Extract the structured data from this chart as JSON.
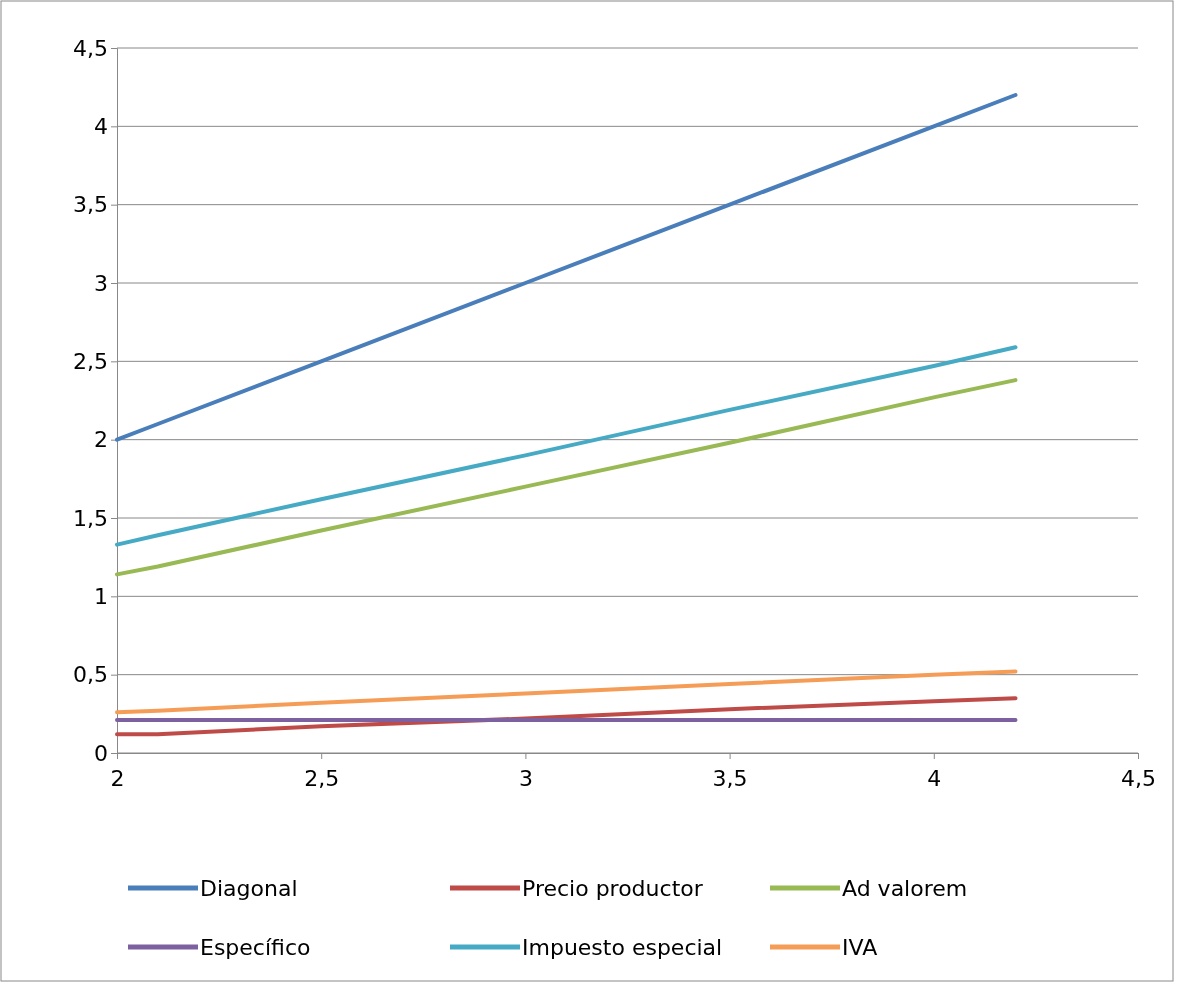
{
  "chart_data": {
    "type": "line",
    "xlim": [
      2,
      4.5
    ],
    "ylim": [
      0,
      4.5
    ],
    "xticks": [
      2,
      {
        "value": 2.5,
        "label": "2,5"
      },
      3,
      {
        "value": 3.5,
        "label": "3,5"
      },
      4,
      {
        "value": 4.5,
        "label": "4,5"
      }
    ],
    "yticks": [
      0,
      {
        "value": 0.5,
        "label": "0,5"
      },
      1,
      {
        "value": 1.5,
        "label": "1,5"
      },
      2,
      {
        "value": 2.5,
        "label": "2,5"
      },
      3,
      {
        "value": 3.5,
        "label": "3,5"
      },
      4,
      {
        "value": 4.5,
        "label": "4,5"
      }
    ],
    "grid": "y",
    "legend": "bottom",
    "marker": "none",
    "line_style": "solid",
    "x": [
      2,
      2.1,
      2.5,
      3,
      3.5,
      4,
      4.2
    ],
    "series": [
      {
        "name": "Diagonal",
        "color": "#4a7ebb",
        "values": [
          2,
          2.1,
          2.5,
          3,
          3.5,
          4,
          4.2
        ]
      },
      {
        "name": "Precio productor",
        "color": "#be4b48",
        "values": [
          0.12,
          0.12,
          0.17,
          0.22,
          0.28,
          0.33,
          0.35
        ]
      },
      {
        "name": "Ad valorem",
        "color": "#98b954",
        "values": [
          1.14,
          1.19,
          1.42,
          1.7,
          1.98,
          2.27,
          2.38
        ]
      },
      {
        "name": "Específico",
        "color": "#7d60a0",
        "values": [
          0.21,
          0.21,
          0.21,
          0.21,
          0.21,
          0.21,
          0.21
        ]
      },
      {
        "name": "Impuesto especial",
        "color": "#46aac5",
        "values": [
          1.33,
          1.39,
          1.62,
          1.9,
          2.19,
          2.47,
          2.59
        ]
      },
      {
        "name": "IVA",
        "color": "#f59d56",
        "values": [
          0.26,
          0.27,
          0.32,
          0.38,
          0.44,
          0.5,
          0.52
        ]
      }
    ]
  }
}
